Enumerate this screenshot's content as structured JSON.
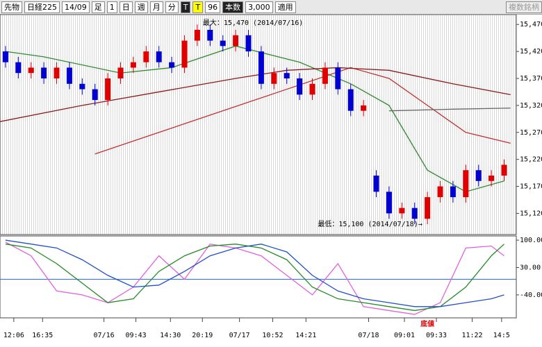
{
  "toolbar": {
    "items": [
      "先物",
      "日経225",
      "14/09",
      "足",
      "1",
      "日",
      "週",
      "月",
      "分",
      "T",
      "T",
      "96",
      "本数",
      "3,000",
      "適用",
      "複数銘柄"
    ]
  },
  "chart_data": {
    "type": "candlestick",
    "annotations": {
      "max": "最大：15,470 (2014/07/16)",
      "min": "最低：15,100 (2014/07/18)→",
      "bottom": "底値"
    },
    "up_color": "#e00000",
    "down_color": "#0000d0",
    "open": [
      15420,
      15400,
      15380,
      15390,
      15370,
      15390,
      15360,
      15350,
      15330,
      15370,
      15390,
      15400,
      15420,
      15400,
      15390,
      15440,
      15460,
      15440,
      15430,
      15450,
      15420,
      15360,
      15380,
      15370,
      15340,
      15360,
      15390,
      15350,
      15310,
      15190,
      15160,
      15120,
      15130,
      15110,
      15150,
      15170,
      15150,
      15200,
      15180,
      15190
    ],
    "high": [
      15430,
      15410,
      15400,
      15400,
      15400,
      15400,
      15370,
      15360,
      15380,
      15400,
      15410,
      15430,
      15430,
      15410,
      15450,
      15470,
      15470,
      15450,
      15460,
      15460,
      15430,
      15390,
      15390,
      15380,
      15370,
      15400,
      15400,
      15360,
      15330,
      15200,
      15170,
      15140,
      15140,
      15160,
      15180,
      15180,
      15210,
      15210,
      15200,
      15220
    ],
    "low": [
      15390,
      15370,
      15370,
      15360,
      15360,
      15350,
      15340,
      15320,
      15320,
      15360,
      15380,
      15390,
      15390,
      15380,
      15380,
      15430,
      15430,
      15420,
      15420,
      15410,
      15350,
      15350,
      15360,
      15330,
      15330,
      15350,
      15340,
      15300,
      15300,
      15150,
      15110,
      15110,
      15100,
      15100,
      15140,
      15140,
      15140,
      15170,
      15170,
      15180
    ],
    "close": [
      15400,
      15380,
      15390,
      15370,
      15390,
      15360,
      15350,
      15330,
      15370,
      15390,
      15400,
      15420,
      15400,
      15390,
      15440,
      15460,
      15440,
      15430,
      15450,
      15420,
      15360,
      15380,
      15370,
      15340,
      15360,
      15390,
      15350,
      15310,
      15320,
      15160,
      15120,
      15130,
      15110,
      15150,
      15170,
      15150,
      15200,
      15180,
      15190,
      15210
    ],
    "xlim": [
      -0.43,
      39.95
    ],
    "ylim": [
      15082,
      15487
    ],
    "yticks": [
      {
        "value": 15470,
        "label": "15,470"
      },
      {
        "value": 15420,
        "label": "15,420"
      },
      {
        "value": 15370,
        "label": "15,370"
      },
      {
        "value": 15320,
        "label": "15,320"
      },
      {
        "value": 15270,
        "label": "15,270"
      },
      {
        "value": 15220,
        "label": "15,220"
      },
      {
        "value": 15170,
        "label": "15,170"
      },
      {
        "value": 15120,
        "label": "15,120"
      }
    ],
    "xticks": [
      {
        "value": 0.65,
        "label": "12:06"
      },
      {
        "value": 2.9,
        "label": "16:35"
      },
      {
        "value": 7.7,
        "label": "07/16"
      },
      {
        "value": 10.2,
        "label": "09:43"
      },
      {
        "value": 12.9,
        "label": "14:30"
      },
      {
        "value": 15.4,
        "label": "20:19"
      },
      {
        "value": 18.3,
        "label": "07/17"
      },
      {
        "value": 20.9,
        "label": "10:52"
      },
      {
        "value": 23.5,
        "label": "14:21"
      },
      {
        "value": 28.4,
        "label": "07/18"
      },
      {
        "value": 31.2,
        "label": "09:01"
      },
      {
        "value": 33.7,
        "label": "09:33"
      },
      {
        "value": 36.5,
        "label": "11:22"
      },
      {
        "value": 38.8,
        "label": "14:5"
      }
    ],
    "lines": [
      {
        "color": "#2e8b2e",
        "x": [
          0,
          3,
          9,
          13,
          18,
          23,
          27,
          30,
          33,
          36,
          39
        ],
        "values": [
          15420,
          15410,
          15380,
          15390,
          15430,
          15400,
          15360,
          15320,
          15200,
          15160,
          15180
        ]
      },
      {
        "color": "#c03030",
        "x": [
          7,
          12,
          17,
          22,
          27,
          30,
          33,
          36,
          39.5
        ],
        "values": [
          15230,
          15270,
          15310,
          15350,
          15390,
          15370,
          15320,
          15270,
          15250
        ]
      },
      {
        "color": "#8b1a1a",
        "x": [
          -0.43,
          6,
          12,
          18,
          22,
          26,
          30,
          35,
          39.5
        ],
        "values": [
          15290,
          15320,
          15345,
          15370,
          15385,
          15390,
          15385,
          15360,
          15340
        ]
      },
      {
        "color": "#666666",
        "x": [
          30,
          35,
          39.5
        ],
        "values": [
          15310,
          15313,
          15315
        ]
      }
    ],
    "oscillator": {
      "ylim": [
        -97,
        109
      ],
      "yticks": [
        {
          "value": 100,
          "label": "100.00"
        },
        {
          "value": 30,
          "label": "30.00"
        },
        {
          "value": -40,
          "label": "-40.00"
        }
      ],
      "reference": 0,
      "reference_color": "#1e64dc",
      "x": [
        0,
        2,
        4,
        6,
        8,
        10,
        12,
        14,
        16,
        18,
        20,
        22,
        24,
        26,
        28,
        30,
        32,
        34,
        36,
        38,
        39
      ],
      "series": [
        {
          "color": "#e060e0",
          "values": [
            95,
            60,
            -30,
            -40,
            -60,
            -20,
            60,
            0,
            90,
            80,
            60,
            10,
            -40,
            40,
            -70,
            -80,
            -90,
            -60,
            80,
            85,
            60
          ]
        },
        {
          "color": "#228b22",
          "values": [
            90,
            80,
            40,
            -10,
            -60,
            -50,
            20,
            60,
            85,
            90,
            80,
            50,
            -20,
            -50,
            -60,
            -70,
            -80,
            -70,
            -20,
            60,
            90
          ]
        },
        {
          "color": "#1e50c8",
          "values": [
            100,
            90,
            80,
            50,
            10,
            -20,
            -15,
            20,
            60,
            80,
            90,
            70,
            10,
            -30,
            -50,
            -60,
            -70,
            -70,
            -60,
            -50,
            -40
          ]
        }
      ]
    }
  }
}
